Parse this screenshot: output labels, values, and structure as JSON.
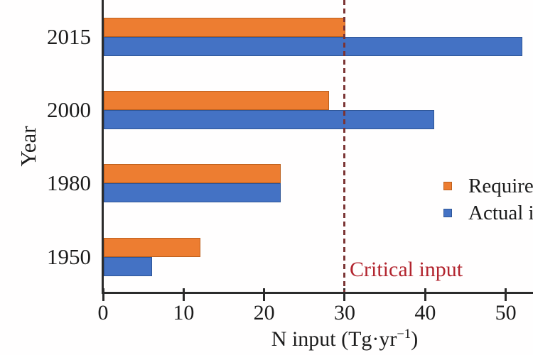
{
  "axes": {
    "ylabel": "Year",
    "xlabel_pre": "N input (Tg·yr",
    "xlabel_sup": "−1",
    "xlabel_post": ")"
  },
  "legend": {
    "items": [
      {
        "label": "Require",
        "color": "#ED7D31"
      },
      {
        "label": "Actual i",
        "color": "#4472C4"
      }
    ],
    "note": "legend text clipped at right image edge"
  },
  "annotation": {
    "critical_label": "Critical input",
    "text_color": "#b2242e"
  },
  "colors": {
    "required_bar": "#ED7D31",
    "actual_bar": "#4472C4",
    "reference_line": "#7b3434",
    "axis": "#2b2b2b"
  },
  "chart_data": {
    "type": "bar",
    "orientation": "horizontal",
    "title": "",
    "xlabel": "N input (Tg·yr⁻¹)",
    "ylabel": "Year",
    "categories": [
      "2015",
      "2000",
      "1980",
      "1950"
    ],
    "series": [
      {
        "name": "Require",
        "color": "#ED7D31",
        "values": [
          30,
          28,
          22,
          12
        ]
      },
      {
        "name": "Actual i",
        "color": "#4472C4",
        "values": [
          52,
          41,
          22,
          6
        ]
      }
    ],
    "xticks": [
      0,
      10,
      20,
      30,
      40,
      50
    ],
    "xlim": [
      0,
      53.4
    ],
    "grid": false,
    "legend_position": "center-right",
    "reference_line": {
      "x": 30,
      "label": "Critical input",
      "style": "dashed",
      "color": "#7b3434"
    }
  }
}
